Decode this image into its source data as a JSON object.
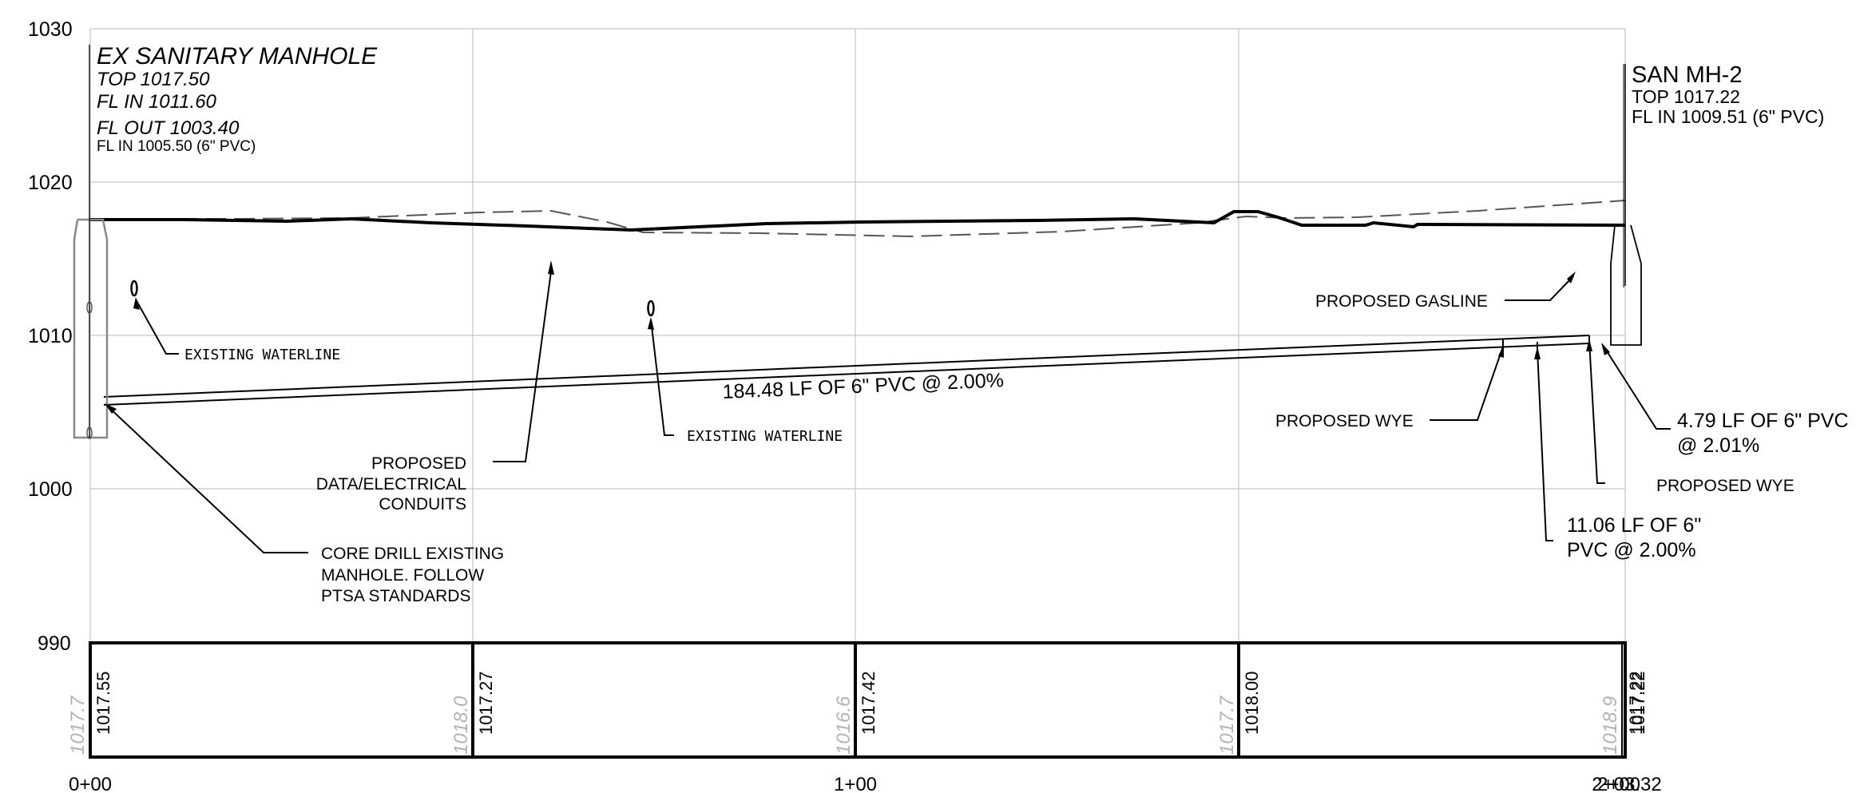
{
  "y_axis": {
    "ticks": [
      {
        "value": 1030,
        "label": "1030"
      },
      {
        "value": 1020,
        "label": "1020"
      },
      {
        "value": 1010,
        "label": "1010"
      },
      {
        "value": 1000,
        "label": "1000"
      },
      {
        "value": 990,
        "label": "990"
      }
    ]
  },
  "x_axis": {
    "station_labels": [
      "0+00",
      "1+00",
      "2+00",
      "2+03.32"
    ]
  },
  "manholes": {
    "existing": {
      "title": "EX SANITARY MANHOLE",
      "top": "TOP 1017.50",
      "fl_in": "FL IN 1011.60",
      "fl_out": "FL OUT 1003.40",
      "fl_in_pvc": "FL IN 1005.50 (6\" PVC)"
    },
    "san_mh2": {
      "title": "SAN MH-2",
      "top": "TOP 1017.22",
      "fl_in": "FL IN 1009.51 (6\" PVC)"
    }
  },
  "callouts": {
    "existing_waterline_1": "EXISTING WATERLINE",
    "existing_waterline_2": "EXISTING WATERLINE",
    "pipe_run": "184.48 LF OF 6\" PVC @ 2.00%",
    "conduits_1": "PROPOSED",
    "conduits_2": "DATA/ELECTRICAL",
    "conduits_3": "CONDUITS",
    "core_1": "CORE DRILL EXISTING",
    "core_2": "MANHOLE. FOLLOW",
    "core_3": "PTSA STANDARDS",
    "gasline": "PROPOSED GASLINE",
    "wye_1": "PROPOSED WYE",
    "wye_2": "PROPOSED WYE",
    "pipe_short_1": "4.79 LF OF 6\" PVC",
    "pipe_short_2": "@ 2.01%",
    "pipe_mid_1": "11.06 LF OF 6\"",
    "pipe_mid_2": "PVC @ 2.00%"
  },
  "elevation_table": {
    "existing": [
      "1017.7",
      "1018.0",
      "1016.6",
      "1017.7",
      "1018.9"
    ],
    "proposed": [
      "1017.55",
      "1017.27",
      "1017.42",
      "1018.00",
      "1017.22",
      "1017.22"
    ]
  }
}
